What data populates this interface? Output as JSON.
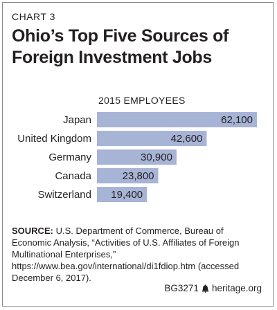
{
  "chart_label": "CHART 3",
  "title_line1": "Ohio’s Top Five Sources of",
  "title_line2": "Foreign Investment Jobs",
  "source_label": "SOURCE:",
  "source_text": "U.S. Department of Commerce, Bureau of Economic Analysis, “Activities of U.S. Affiliates of Foreign Multinational Enterprises,” https://www.bea.gov/international/di1fdiop.htm (accessed December 6, 2017).",
  "footer": {
    "code": "BG3271",
    "site": "heritage.org"
  },
  "colors": {
    "bar": "#a7b4d6",
    "text": "#231f20"
  },
  "chart_data": {
    "type": "bar",
    "orientation": "horizontal",
    "title": "Ohio’s Top Five Sources of Foreign Investment Jobs",
    "subtitle": "2015 EMPLOYEES",
    "categories": [
      "Japan",
      "United Kingdom",
      "Germany",
      "Canada",
      "Switzerland"
    ],
    "values": [
      62100,
      42600,
      30900,
      23800,
      19400
    ],
    "value_labels": [
      "62,100",
      "42,600",
      "30,900",
      "23,800",
      "19,400"
    ],
    "xlim": [
      0,
      62100
    ],
    "grid": false,
    "legend": "none"
  }
}
